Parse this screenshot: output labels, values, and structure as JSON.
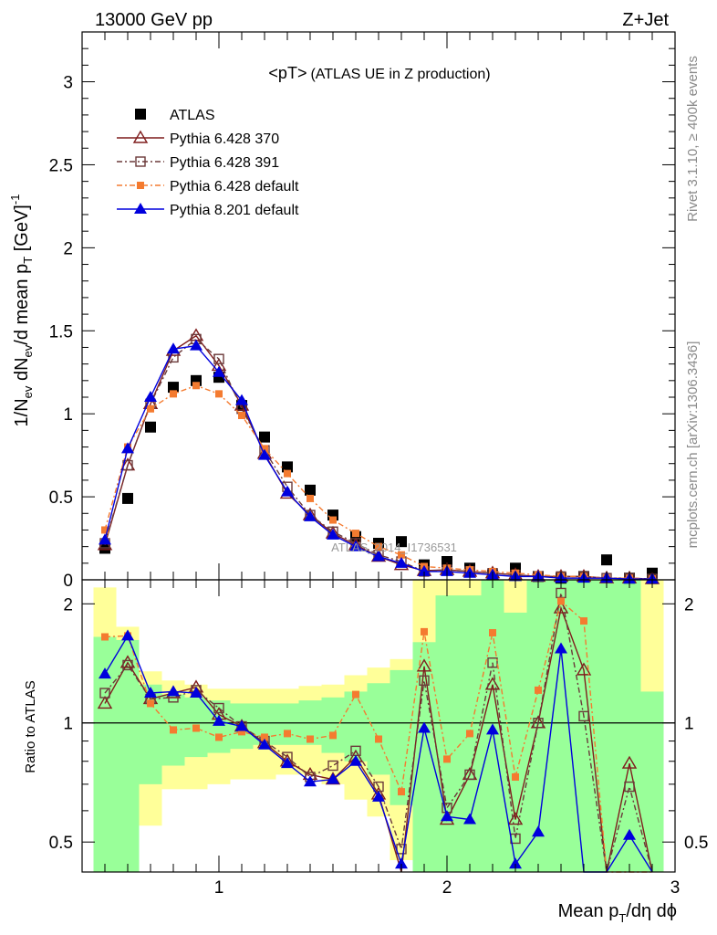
{
  "header": {
    "left": "13000 GeV pp",
    "right": "Z+Jet"
  },
  "side": {
    "rivet": "Rivet 3.1.10, ≥ 400k events",
    "mcplots": "mcplots.cern.ch [arXiv:1306.3436]"
  },
  "top_panel": {
    "title_main": "<pT>",
    "title_sub": "(ATLAS UE in Z production)",
    "watermark": "ATLAS_2014_I1736531",
    "ylabel": "1/N_ev dN_ev/d mean p_T [GeV]^-1",
    "yticks": [
      "0",
      "0.5",
      "1",
      "1.5",
      "2",
      "2.5",
      "3"
    ]
  },
  "bottom_panel": {
    "ylabel": "Ratio to ATLAS",
    "yticks": [
      "0.5",
      "1",
      "2"
    ]
  },
  "xaxis": {
    "xlabel": "Mean p_T/dη dϕ",
    "ticks": [
      "1",
      "2",
      "3"
    ]
  },
  "legend": [
    {
      "label": "ATLAS",
      "color": "#000000",
      "marker": "square-filled",
      "dash": ""
    },
    {
      "label": "Pythia 6.428 370",
      "color": "#7f1d1d",
      "marker": "triangle-open",
      "dash": ""
    },
    {
      "label": "Pythia 6.428 391",
      "color": "#6b3a3a",
      "marker": "square-open",
      "dash": "6,3,2,3"
    },
    {
      "label": "Pythia 6.428 default",
      "color": "#f47b30",
      "marker": "square-filled-small",
      "dash": "6,3,2,3"
    },
    {
      "label": "Pythia 8.201 default",
      "color": "#0000dd",
      "marker": "triangle-filled",
      "dash": ""
    }
  ],
  "chart_data": {
    "type": "scatter",
    "x": [
      0.5,
      0.6,
      0.7,
      0.8,
      0.9,
      1.0,
      1.1,
      1.2,
      1.3,
      1.4,
      1.5,
      1.6,
      1.7,
      1.8,
      1.9,
      2.0,
      2.1,
      2.2,
      2.3,
      2.4,
      2.5,
      2.6,
      2.7,
      2.8,
      2.9
    ],
    "xlim": [
      0.4,
      3.0
    ],
    "ylim": [
      0,
      3.3
    ],
    "ratio_ylim_log": [
      0.42,
      2.3
    ],
    "series": [
      {
        "name": "ATLAS",
        "values": [
          0.19,
          0.49,
          0.92,
          1.16,
          1.2,
          1.22,
          1.05,
          0.86,
          0.68,
          0.54,
          0.39,
          0.26,
          0.22,
          0.23,
          0.09,
          0.11,
          0.07,
          0.03,
          0.07,
          0.02,
          0.01,
          0.02,
          0.12,
          0.01,
          0.04
        ]
      },
      {
        "name": "Pythia 6.428 370",
        "values": [
          0.21,
          0.69,
          1.06,
          1.38,
          1.47,
          1.29,
          1.05,
          0.76,
          0.52,
          0.39,
          0.28,
          0.21,
          0.14,
          0.09,
          0.055,
          0.06,
          0.05,
          0.04,
          0.03,
          0.02,
          0.02,
          0.02,
          0.01,
          0.01,
          0.005
        ]
      },
      {
        "name": "Pythia 6.428 391",
        "values": [
          0.22,
          0.69,
          1.06,
          1.34,
          1.45,
          1.33,
          1.03,
          0.78,
          0.56,
          0.39,
          0.29,
          0.22,
          0.15,
          0.11,
          0.05,
          0.06,
          0.05,
          0.04,
          0.03,
          0.02,
          0.02,
          0.02,
          0.01,
          0.01,
          0.005
        ]
      },
      {
        "name": "Pythia 6.428 default",
        "values": [
          0.3,
          0.8,
          1.03,
          1.12,
          1.17,
          1.12,
          0.99,
          0.79,
          0.64,
          0.49,
          0.36,
          0.28,
          0.2,
          0.15,
          0.08,
          0.07,
          0.06,
          0.05,
          0.04,
          0.03,
          0.02,
          0.02,
          0.01,
          0.01,
          0.005
        ]
      },
      {
        "name": "Pythia 8.201 default",
        "values": [
          0.24,
          0.79,
          1.1,
          1.39,
          1.41,
          1.25,
          1.08,
          0.75,
          0.53,
          0.38,
          0.27,
          0.2,
          0.14,
          0.1,
          0.05,
          0.05,
          0.04,
          0.03,
          0.02,
          0.02,
          0.01,
          0.01,
          0.01,
          0.005,
          0.005
        ]
      }
    ],
    "ratios": [
      {
        "name": "Pythia 6.428 370",
        "values": [
          1.12,
          1.42,
          1.15,
          1.19,
          1.23,
          1.05,
          0.98,
          0.89,
          0.8,
          0.74,
          0.72,
          0.82,
          0.66,
          0.4,
          1.39,
          0.57,
          0.74,
          1.25,
          0.57,
          1.0,
          1.95,
          1.36,
          0.3,
          0.79,
          0.3
        ]
      },
      {
        "name": "Pythia 6.428 391",
        "values": [
          1.19,
          1.4,
          1.15,
          1.16,
          1.21,
          1.09,
          0.98,
          0.9,
          0.82,
          0.73,
          0.78,
          0.85,
          0.69,
          0.48,
          1.28,
          0.61,
          0.74,
          1.42,
          0.51,
          1.0,
          2.13,
          1.04,
          0.3,
          0.69,
          0.3
        ]
      },
      {
        "name": "Pythia 6.428 default",
        "values": [
          1.65,
          1.66,
          1.12,
          0.96,
          0.97,
          0.92,
          0.95,
          0.92,
          0.94,
          0.91,
          0.93,
          1.18,
          0.91,
          0.67,
          1.7,
          0.81,
          0.94,
          1.69,
          0.73,
          1.21,
          2.03,
          1.81,
          0.3,
          0.3,
          0.3
        ]
      },
      {
        "name": "Pythia 8.201 default",
        "values": [
          1.33,
          1.66,
          1.19,
          1.2,
          1.19,
          1.01,
          0.98,
          0.88,
          0.79,
          0.71,
          0.72,
          0.8,
          0.65,
          0.44,
          0.97,
          0.58,
          0.57,
          0.96,
          0.44,
          0.53,
          1.54,
          0.3,
          0.3,
          0.52,
          0.3
        ]
      }
    ],
    "bands": {
      "yellow": [
        [
          0.42,
          2.2
        ],
        [
          0.48,
          1.75
        ],
        [
          0.55,
          1.35
        ],
        [
          0.68,
          1.28
        ],
        [
          0.68,
          1.25
        ],
        [
          0.7,
          1.22
        ],
        [
          0.72,
          1.22
        ],
        [
          0.72,
          1.22
        ],
        [
          0.74,
          1.22
        ],
        [
          0.74,
          1.24
        ],
        [
          0.7,
          1.25
        ],
        [
          0.64,
          1.32
        ],
        [
          0.58,
          1.38
        ],
        [
          0.45,
          1.45
        ],
        [
          0.42,
          2.3
        ],
        [
          0.42,
          2.3
        ],
        [
          0.42,
          2.3
        ],
        [
          0.42,
          2.3
        ],
        [
          0.42,
          2.3
        ],
        [
          0.42,
          2.3
        ],
        [
          0.42,
          2.3
        ],
        [
          0.42,
          2.3
        ],
        [
          0.42,
          2.3
        ],
        [
          0.42,
          2.3
        ],
        [
          0.42,
          2.3
        ]
      ],
      "green": [
        [
          0.42,
          1.65
        ],
        [
          0.42,
          1.62
        ],
        [
          0.7,
          1.25
        ],
        [
          0.78,
          1.18
        ],
        [
          0.82,
          1.16
        ],
        [
          0.84,
          1.14
        ],
        [
          0.86,
          1.12
        ],
        [
          0.88,
          1.12
        ],
        [
          0.88,
          1.12
        ],
        [
          0.88,
          1.14
        ],
        [
          0.84,
          1.16
        ],
        [
          0.8,
          1.2
        ],
        [
          0.74,
          1.26
        ],
        [
          0.62,
          1.36
        ],
        [
          0.42,
          1.6
        ],
        [
          0.42,
          2.1
        ],
        [
          0.42,
          2.1
        ],
        [
          0.42,
          2.3
        ],
        [
          0.42,
          1.9
        ],
        [
          0.42,
          2.3
        ],
        [
          0.42,
          2.3
        ],
        [
          0.42,
          2.3
        ],
        [
          0.42,
          2.3
        ],
        [
          0.42,
          2.3
        ],
        [
          0.42,
          1.2
        ]
      ]
    }
  }
}
